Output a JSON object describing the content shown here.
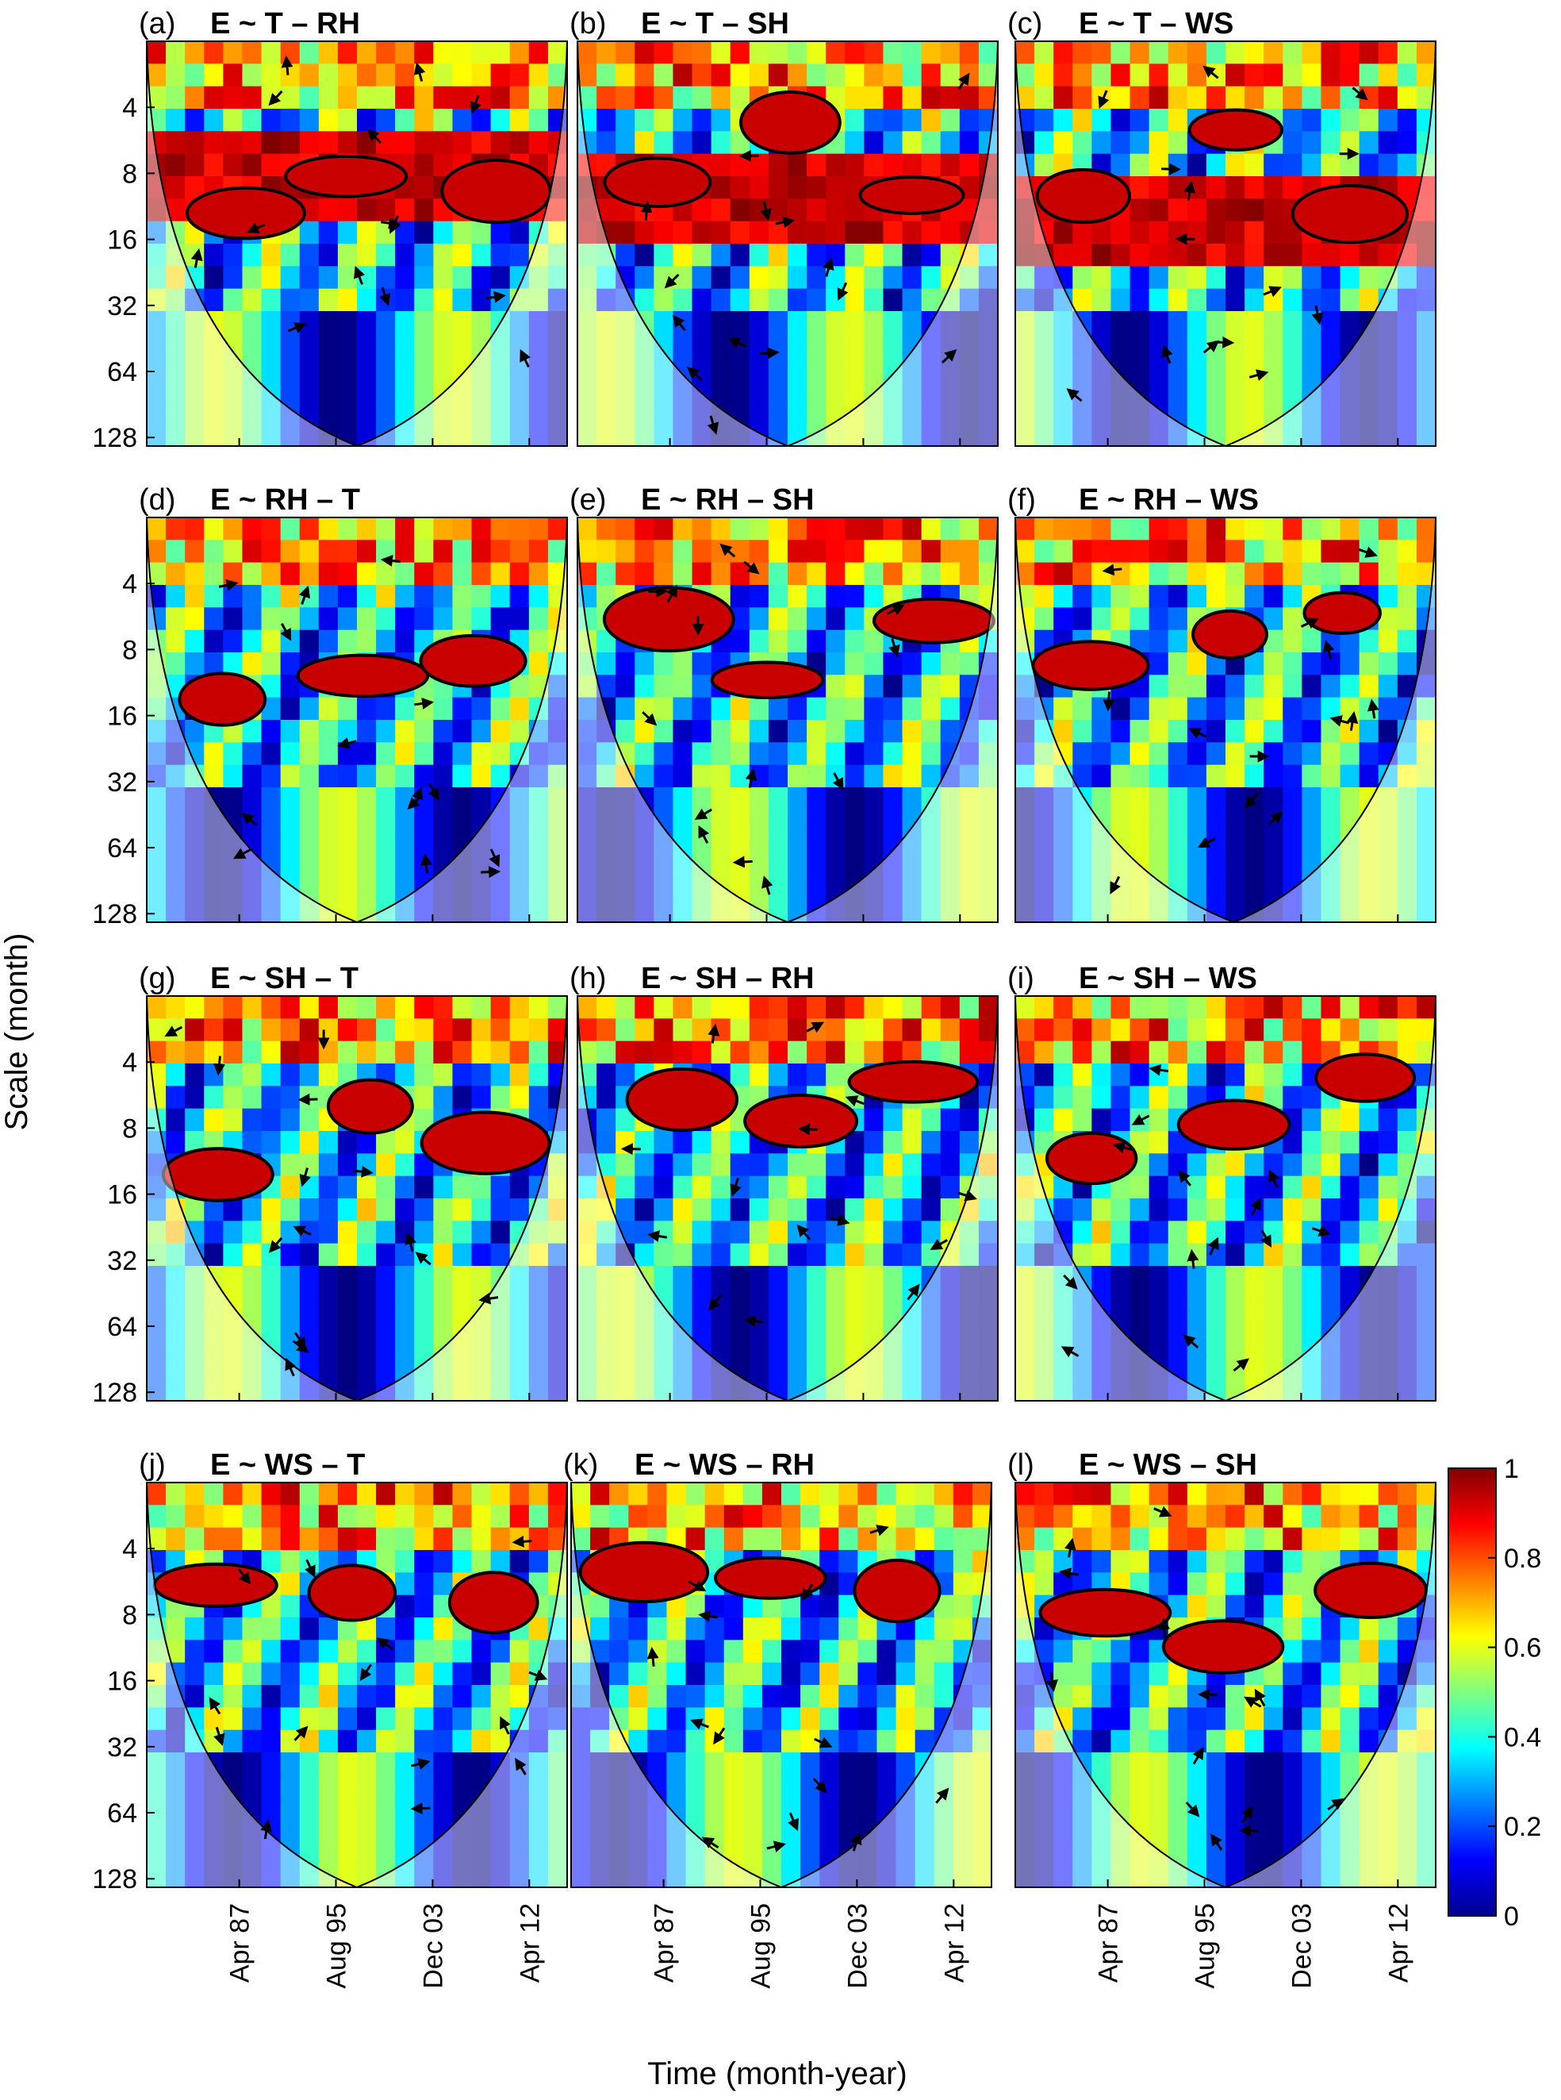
{
  "chart_data": {
    "type": "heatmap",
    "description_axes": {
      "ylabel": "Scale (month)",
      "xlabel": "Time (month-year)"
    },
    "y_ticks": [
      "4",
      "8",
      "16",
      "32",
      "64",
      "128"
    ],
    "x_ticks": [
      "Apr 87",
      "Aug 95",
      "Dec 03",
      "Apr 12"
    ],
    "colorbar": {
      "min": 0,
      "max": 1,
      "ticks": [
        "0",
        "0.2",
        "0.4",
        "0.6",
        "0.8",
        "1"
      ]
    },
    "panels": [
      {
        "letter": "(a)",
        "title": "E ~ T – RH"
      },
      {
        "letter": "(b)",
        "title": "E ~ T – SH"
      },
      {
        "letter": "(c)",
        "title": "E ~ T – WS"
      },
      {
        "letter": "(d)",
        "title": "E ~ RH – T"
      },
      {
        "letter": "(e)",
        "title": "E ~ RH – SH"
      },
      {
        "letter": "(f)",
        "title": "E ~ RH – WS"
      },
      {
        "letter": "(g)",
        "title": "E ~ SH – T"
      },
      {
        "letter": "(h)",
        "title": "E ~ SH – RH"
      },
      {
        "letter": "(i)",
        "title": "E ~ SH – WS"
      },
      {
        "letter": "(j)",
        "title": "E ~ WS – T"
      },
      {
        "letter": "(k)",
        "title": "E ~ WS – RH"
      },
      {
        "letter": "(l)",
        "title": "E ~ WS – SH"
      }
    ]
  }
}
